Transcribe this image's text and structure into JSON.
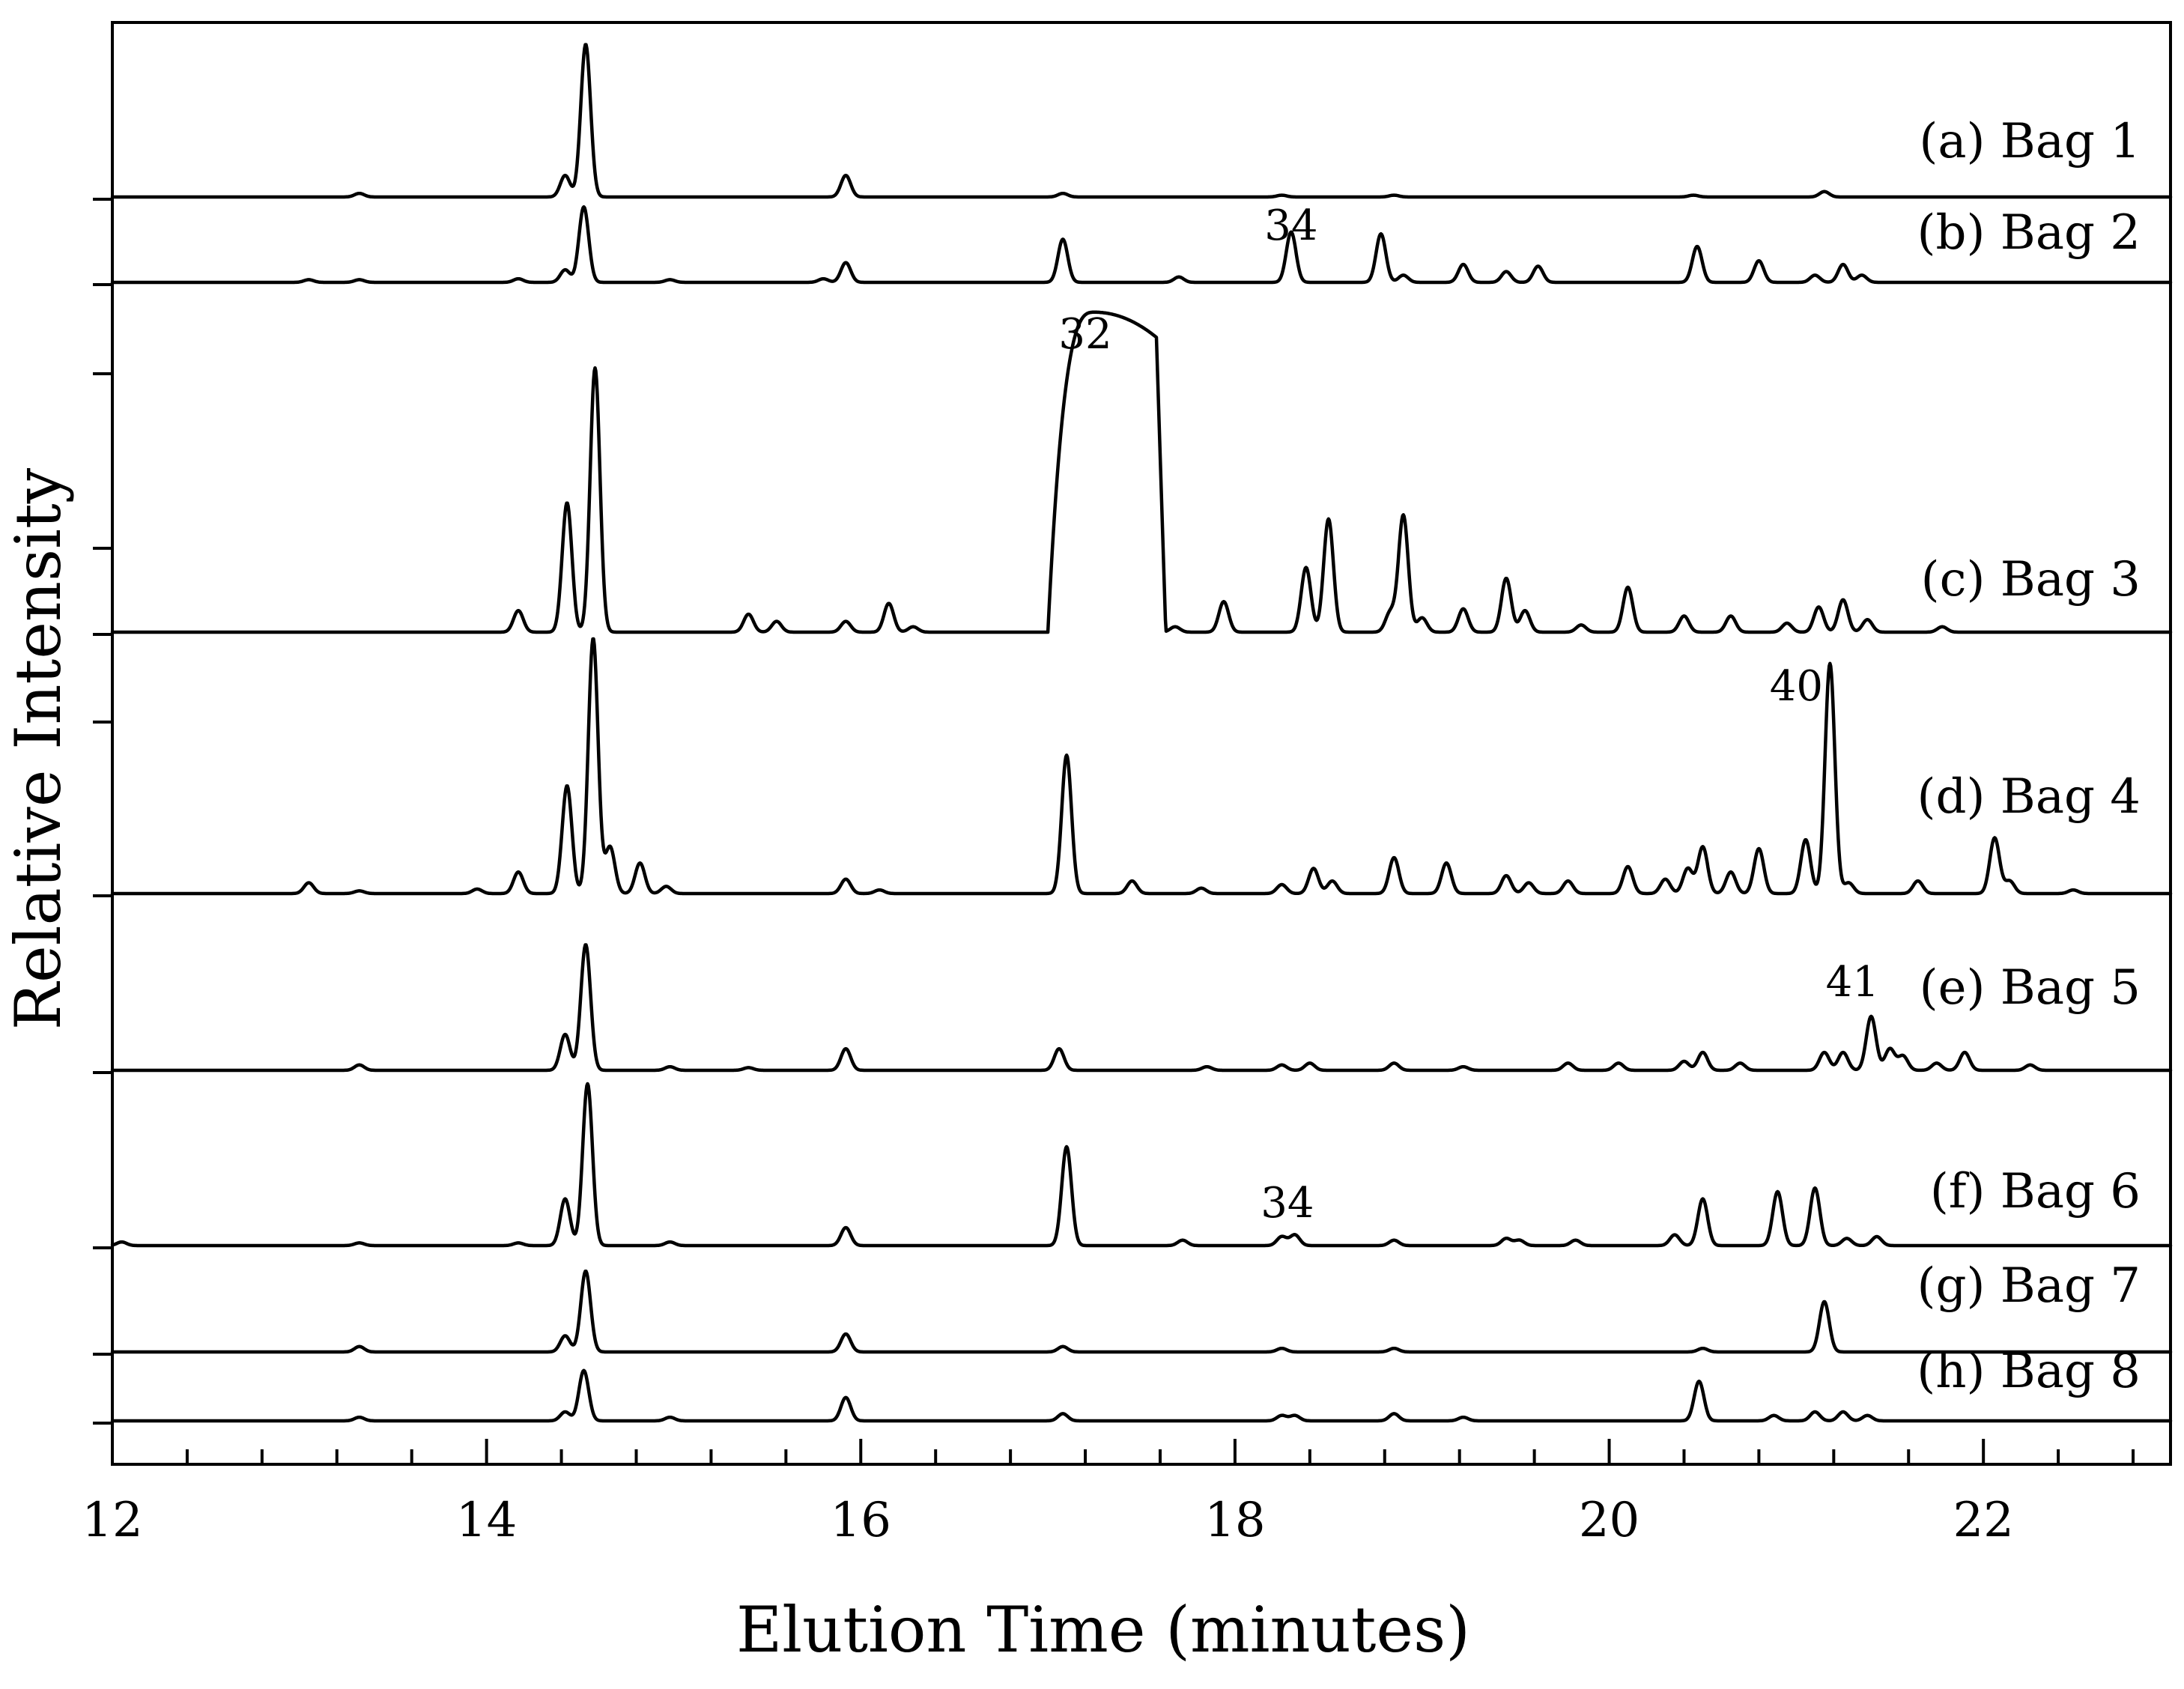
{
  "chart_data": {
    "type": "line",
    "xlabel": "Elution Time (minutes)",
    "ylabel": "Relative Intensity",
    "xlim": [
      12,
      23
    ],
    "x_ticks": [
      12,
      14,
      16,
      18,
      20,
      22
    ],
    "x_minor_step": 0.4,
    "grid": false,
    "stacked_offsets": true,
    "series": [
      {
        "name": "(a) Bag 1",
        "baseline": 0.0,
        "peaks": [
          [
            13.32,
            0.02
          ],
          [
            14.42,
            0.12
          ],
          [
            14.53,
            0.85
          ],
          [
            15.92,
            0.12
          ],
          [
            17.08,
            0.02
          ],
          [
            18.25,
            0.01
          ],
          [
            18.85,
            0.01
          ],
          [
            20.45,
            0.01
          ],
          [
            21.15,
            0.03
          ]
        ],
        "annotations": []
      },
      {
        "name": "(b) Bag 2",
        "baseline": 0.0,
        "peaks": [
          [
            13.05,
            0.015
          ],
          [
            13.32,
            0.015
          ],
          [
            14.17,
            0.02
          ],
          [
            14.42,
            0.07
          ],
          [
            14.52,
            0.42
          ],
          [
            14.98,
            0.015
          ],
          [
            15.8,
            0.02
          ],
          [
            15.92,
            0.11
          ],
          [
            17.08,
            0.24
          ],
          [
            17.7,
            0.03
          ],
          [
            18.3,
            0.28
          ],
          [
            18.78,
            0.27
          ],
          [
            18.9,
            0.04
          ],
          [
            19.22,
            0.1
          ],
          [
            19.45,
            0.06
          ],
          [
            19.62,
            0.09
          ],
          [
            20.47,
            0.2
          ],
          [
            20.8,
            0.12
          ],
          [
            21.1,
            0.04
          ],
          [
            21.25,
            0.1
          ],
          [
            21.35,
            0.04
          ]
        ],
        "annotations": [
          {
            "text": "34",
            "x": 18.3
          }
        ]
      },
      {
        "name": "(c) Bag 3",
        "baseline": 0.0,
        "peaks": [
          [
            14.17,
            0.12
          ],
          [
            14.43,
            0.72
          ],
          [
            14.58,
            1.47
          ],
          [
            15.4,
            0.1
          ],
          [
            15.55,
            0.06
          ],
          [
            15.92,
            0.06
          ],
          [
            16.15,
            0.16
          ],
          [
            16.28,
            0.03
          ],
          [
            17.68,
            0.03
          ],
          [
            17.94,
            0.17
          ],
          [
            18.38,
            0.36
          ],
          [
            18.5,
            0.63
          ],
          [
            18.83,
            0.11
          ],
          [
            18.9,
            0.65
          ],
          [
            19.0,
            0.08
          ],
          [
            19.22,
            0.13
          ],
          [
            19.45,
            0.3
          ],
          [
            19.55,
            0.12
          ],
          [
            19.85,
            0.04
          ],
          [
            20.1,
            0.25
          ],
          [
            20.4,
            0.09
          ],
          [
            20.65,
            0.09
          ],
          [
            20.95,
            0.05
          ],
          [
            21.12,
            0.14
          ],
          [
            21.25,
            0.18
          ],
          [
            21.38,
            0.07
          ],
          [
            21.78,
            0.03
          ]
        ],
        "plateau": {
          "start": 17.05,
          "end": 17.58,
          "top": 1.78,
          "end_level": 1.64
        },
        "annotations": [
          {
            "text": "32",
            "x": 17.2
          }
        ]
      },
      {
        "name": "(d) Bag 4",
        "baseline": 0.0,
        "peaks": [
          [
            13.05,
            0.06
          ],
          [
            13.32,
            0.015
          ],
          [
            13.95,
            0.025
          ],
          [
            14.17,
            0.12
          ],
          [
            14.43,
            0.6
          ],
          [
            14.57,
            1.42
          ],
          [
            14.66,
            0.26
          ],
          [
            14.82,
            0.17
          ],
          [
            14.96,
            0.04
          ],
          [
            15.92,
            0.08
          ],
          [
            16.1,
            0.02
          ],
          [
            17.1,
            0.77
          ],
          [
            17.45,
            0.07
          ],
          [
            17.82,
            0.03
          ],
          [
            18.25,
            0.05
          ],
          [
            18.42,
            0.14
          ],
          [
            18.52,
            0.07
          ],
          [
            18.85,
            0.2
          ],
          [
            19.13,
            0.17
          ],
          [
            19.45,
            0.1
          ],
          [
            19.57,
            0.06
          ],
          [
            19.78,
            0.07
          ],
          [
            20.1,
            0.15
          ],
          [
            20.3,
            0.08
          ],
          [
            20.42,
            0.14
          ],
          [
            20.5,
            0.26
          ],
          [
            20.65,
            0.12
          ],
          [
            20.8,
            0.25
          ],
          [
            21.05,
            0.3
          ],
          [
            21.18,
            1.28
          ],
          [
            21.28,
            0.06
          ],
          [
            21.65,
            0.07
          ],
          [
            22.06,
            0.31
          ],
          [
            22.14,
            0.07
          ],
          [
            22.48,
            0.02
          ]
        ],
        "annotations": [
          {
            "text": "40",
            "x": 21.0
          }
        ]
      },
      {
        "name": "(e) Bag 5",
        "baseline": 0.0,
        "peaks": [
          [
            13.32,
            0.03
          ],
          [
            14.42,
            0.2
          ],
          [
            14.53,
            0.7
          ],
          [
            14.98,
            0.02
          ],
          [
            15.4,
            0.015
          ],
          [
            15.92,
            0.12
          ],
          [
            17.06,
            0.12
          ],
          [
            17.85,
            0.02
          ],
          [
            18.25,
            0.03
          ],
          [
            18.4,
            0.04
          ],
          [
            18.85,
            0.04
          ],
          [
            19.22,
            0.02
          ],
          [
            19.78,
            0.04
          ],
          [
            20.05,
            0.04
          ],
          [
            20.4,
            0.05
          ],
          [
            20.5,
            0.1
          ],
          [
            20.7,
            0.04
          ],
          [
            21.15,
            0.1
          ],
          [
            21.25,
            0.1
          ],
          [
            21.4,
            0.3
          ],
          [
            21.5,
            0.12
          ],
          [
            21.57,
            0.08
          ],
          [
            21.75,
            0.04
          ],
          [
            21.9,
            0.1
          ],
          [
            22.25,
            0.03
          ]
        ],
        "annotations": [
          {
            "text": "41",
            "x": 21.3
          }
        ]
      },
      {
        "name": "(f) Bag 6",
        "baseline": 0.0,
        "peaks": [
          [
            12.05,
            0.02
          ],
          [
            13.32,
            0.015
          ],
          [
            14.17,
            0.015
          ],
          [
            14.42,
            0.26
          ],
          [
            14.54,
            0.9
          ],
          [
            14.98,
            0.02
          ],
          [
            15.92,
            0.1
          ],
          [
            17.1,
            0.55
          ],
          [
            17.72,
            0.03
          ],
          [
            18.25,
            0.05
          ],
          [
            18.32,
            0.06
          ],
          [
            18.85,
            0.03
          ],
          [
            19.45,
            0.04
          ],
          [
            19.52,
            0.03
          ],
          [
            19.82,
            0.03
          ],
          [
            20.35,
            0.06
          ],
          [
            20.5,
            0.26
          ],
          [
            20.9,
            0.3
          ],
          [
            21.1,
            0.32
          ],
          [
            21.27,
            0.04
          ],
          [
            21.43,
            0.05
          ]
        ],
        "annotations": [
          {
            "text": "34",
            "x": 18.28
          }
        ]
      },
      {
        "name": "(g) Bag 7",
        "baseline": 0.0,
        "peaks": [
          [
            13.32,
            0.03
          ],
          [
            14.42,
            0.09
          ],
          [
            14.53,
            0.45
          ],
          [
            15.92,
            0.1
          ],
          [
            17.08,
            0.03
          ],
          [
            18.25,
            0.02
          ],
          [
            18.85,
            0.02
          ],
          [
            20.5,
            0.02
          ],
          [
            21.15,
            0.28
          ]
        ],
        "annotations": []
      },
      {
        "name": "(h) Bag 8",
        "baseline": 0.0,
        "peaks": [
          [
            13.32,
            0.02
          ],
          [
            14.42,
            0.05
          ],
          [
            14.52,
            0.28
          ],
          [
            14.98,
            0.02
          ],
          [
            15.92,
            0.13
          ],
          [
            17.08,
            0.04
          ],
          [
            18.25,
            0.03
          ],
          [
            18.32,
            0.03
          ],
          [
            18.85,
            0.04
          ],
          [
            19.22,
            0.02
          ],
          [
            20.48,
            0.22
          ],
          [
            20.88,
            0.03
          ],
          [
            21.1,
            0.05
          ],
          [
            21.25,
            0.05
          ],
          [
            21.38,
            0.03
          ]
        ],
        "annotations": []
      }
    ]
  }
}
